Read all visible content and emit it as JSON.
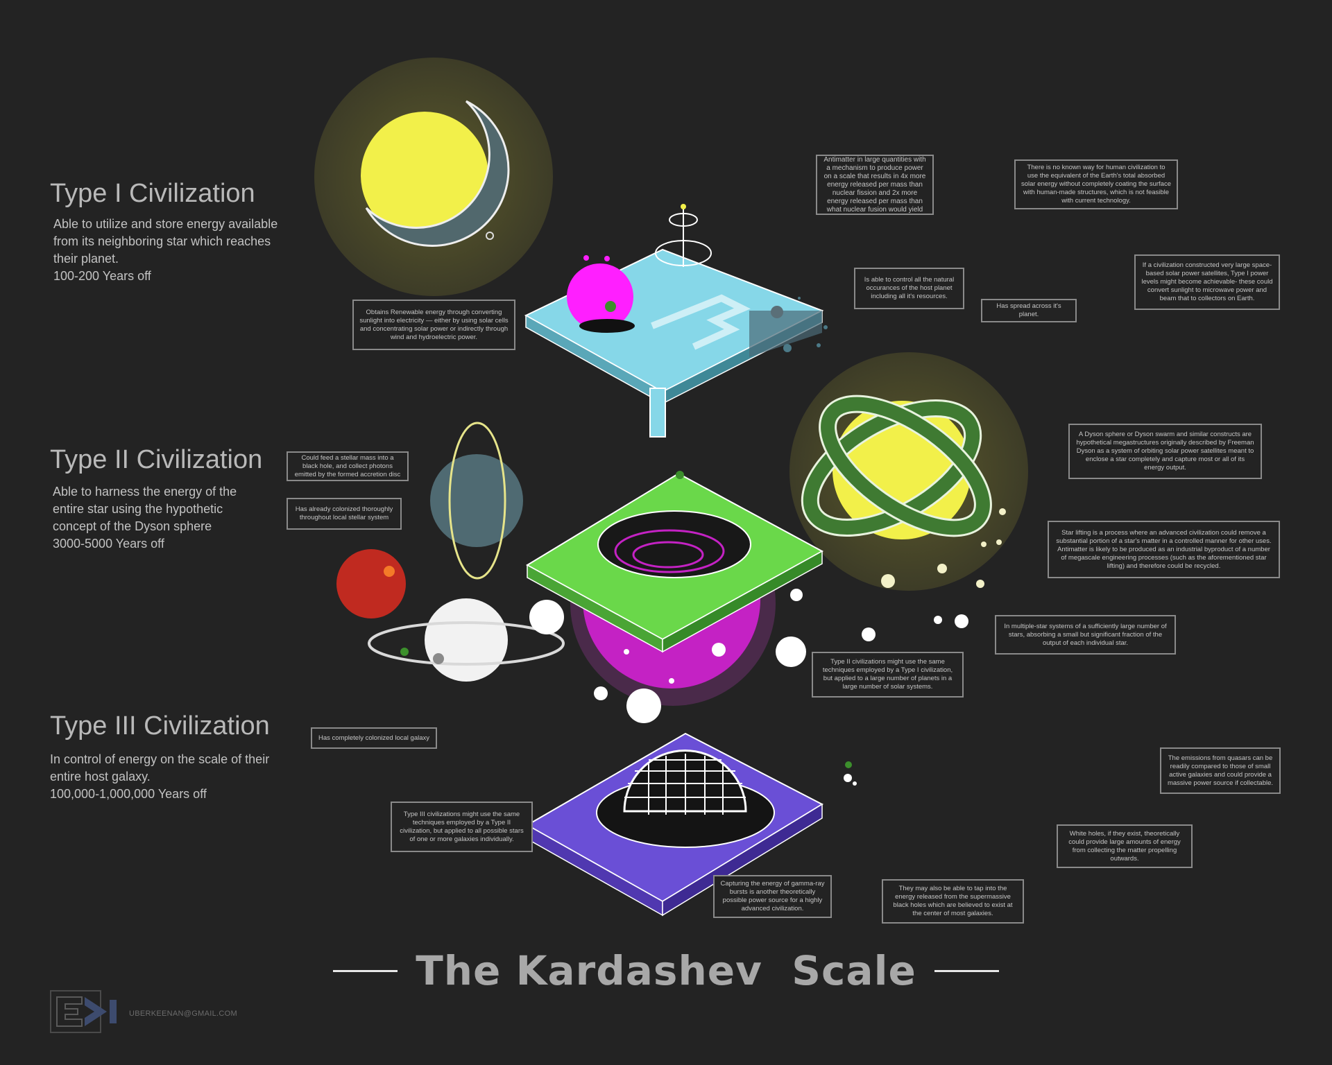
{
  "type1": {
    "heading": "Type I Civilization",
    "description": "Able to utilize and store energy available from its neighboring star which reaches their planet.",
    "timeline": "100-200 Years off"
  },
  "type2": {
    "heading": "Type II Civilization",
    "description": "Able to harness the energy of the entire star using the hypothetic concept of the Dyson sphere",
    "timeline": "3000-5000 Years off"
  },
  "type3": {
    "heading": "Type III Civilization",
    "description": "In control of energy on the scale of their entire host galaxy.",
    "timeline": "100,000-1,000,000 Years off"
  },
  "notes": {
    "renewable": "Obtains Renewable energy through converting sunlight into electricity — either by using solar cells and concentrating solar power or indirectly through wind and hydroelectric power.",
    "antimatter": "Antimatter in large quantities with a mechanism to produce power on a scale that results in 4x more energy released per mass than nuclear fission and 2x more energy released per mass than what nuclear fusion would yield",
    "no_known_way": "There is no known way for human civilization to use the equivalent of the Earth's total absorbed solar energy without completely coating the surface with human-made structures, which is not feasible with current technology.",
    "control_natural": "Is able to control all the natural occurances of the host planet including all it's resources.",
    "spread_planet": "Has spread across it's planet.",
    "satellites": "If a civilization constructed very large space-based solar power satellites, Type I power levels might become achievable- these could convert sunlight to microwave power and beam that to collectors on Earth.",
    "black_hole": "Could feed a stellar mass into a black hole, and collect photons emitted by the formed accretion disc",
    "colonized_stellar": "Has already colonized thoroughly throughout local stellar system",
    "dyson": "A Dyson sphere or Dyson swarm and similar constructs are hypothetical megastructures originally described by Freeman Dyson as a system of orbiting solar power satellites meant to enclose a star completely and capture most or all of its energy output.",
    "star_lifting": "Star lifting is a process where an advanced civilization could remove a substantial portion of a star's matter in a controlled manner for other uses. Antimatter is likely to be produced as an industrial byproduct of a number of megascale engineering processes (such as the aforementioned star lifting) and therefore could be recycled.",
    "multi_star": "In multiple-star systems of a sufficiently large number of stars, absorbing a small but significant fraction of the output of each individual star.",
    "type2_techniques": "Type II civilizations might use the same techniques employed by a Type I civilization, but applied to a large number of planets in a large number of solar systems.",
    "colonized_galaxy": "Has completely colonized local galaxy",
    "type3_techniques": "Type III civilizations might use the same techniques employed by a Type II civilization, but applied to all possible stars of one or more galaxies individually.",
    "gamma": "Capturing the energy of gamma-ray bursts is another theoretically possible power source for a highly advanced civilization.",
    "supermassive": "They may also be able to tap into the energy released from the supermassive black holes which are believed to exist at the center of most galaxies.",
    "quasars": "The emissions from quasars can be readily compared to those of small active galaxies and could provide a massive power source if collectable.",
    "white_holes": "White holes, if they exist, theoretically could provide large amounts of energy from collecting the matter propelling outwards."
  },
  "title": "The Kardashev  Scale",
  "footer": {
    "email": "UBERKEENAN@GMAIL.COM"
  },
  "colors": {
    "background": "#232323",
    "star_yellow": "#f2f04a",
    "planet_slate": "#4f6a72",
    "type1_platform": "#86d7e8",
    "type2_platform": "#6ad84a",
    "type2_sphere": "#c422c4",
    "type3_platform": "#6a4fd6",
    "magenta": "#ff1fff",
    "dyson_ring": "#3f7a32"
  }
}
